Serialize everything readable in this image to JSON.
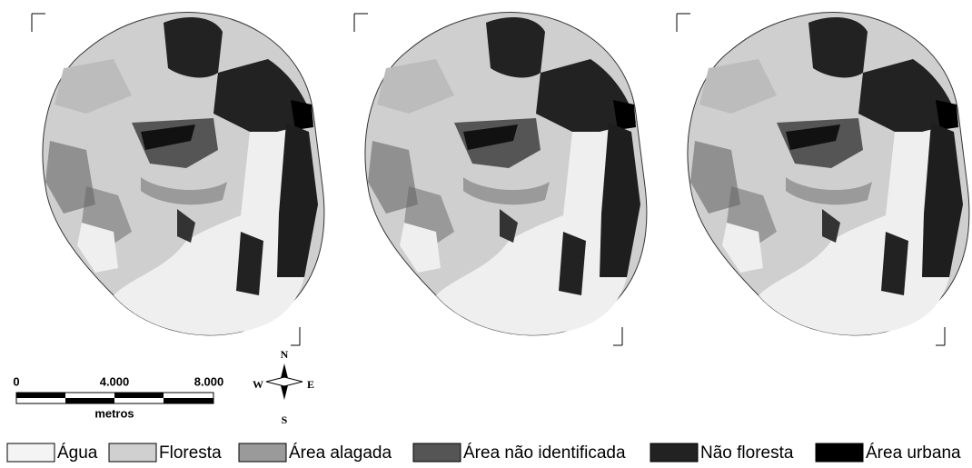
{
  "scale_bar": {
    "labels": [
      "0",
      "4.000",
      "8.000"
    ],
    "unit": "metros"
  },
  "compass": {
    "n": "N",
    "s": "S",
    "e": "E",
    "w": "W"
  },
  "legend": [
    {
      "label": "Água",
      "color": "#f4f4f4"
    },
    {
      "label": "Floresta",
      "color": "#d0d0d0"
    },
    {
      "label": "Área alagada",
      "color": "#9a9a9a"
    },
    {
      "label": "Área não identificada",
      "color": "#555555"
    },
    {
      "label": "Não floresta",
      "color": "#222222"
    },
    {
      "label": "Área urbana",
      "color": "#000000"
    }
  ]
}
